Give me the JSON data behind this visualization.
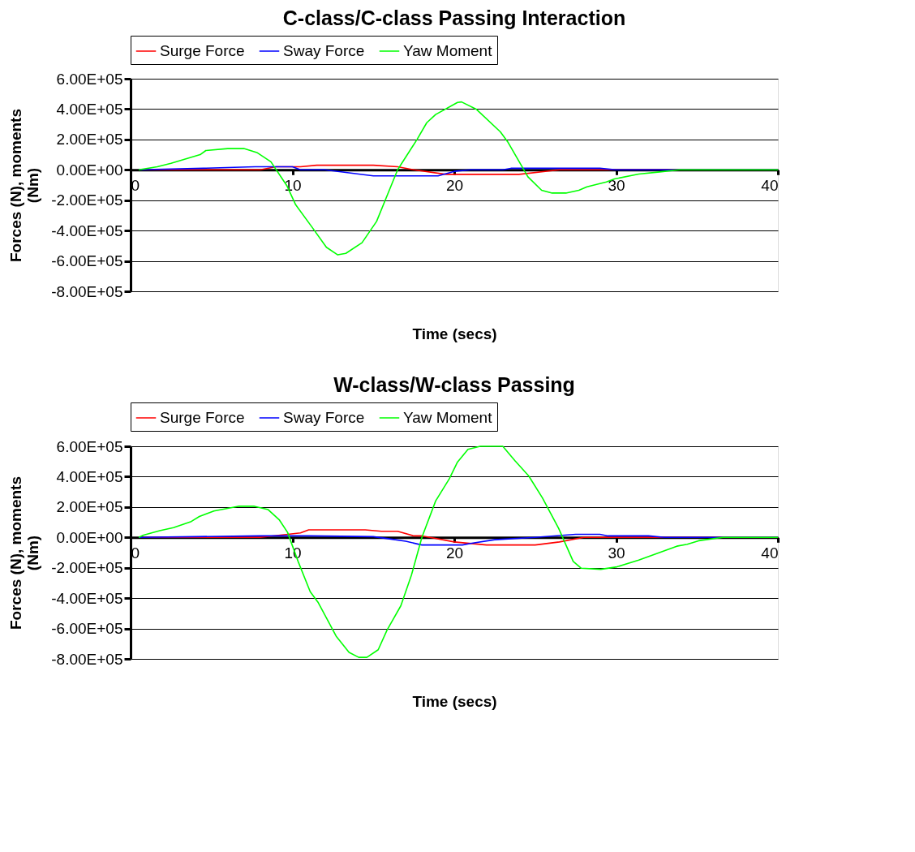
{
  "chart_data": [
    {
      "type": "line",
      "title": "C-class/C-class Passing Interaction",
      "xlabel": "Time (secs)",
      "ylabel": "Forces (N), moments\n(Nm)",
      "legend": "top",
      "grid": "y",
      "marker": "none",
      "line_style": "solid",
      "xlim": [
        0,
        40
      ],
      "xticks": [
        0,
        10,
        20,
        30,
        40
      ],
      "ylim": [
        -800000,
        600000
      ],
      "yticks": [
        {
          "value": -800000,
          "label": "-8.00E+05"
        },
        {
          "value": -600000,
          "label": "-6.00E+05"
        },
        {
          "value": -400000,
          "label": "-4.00E+05"
        },
        {
          "value": -200000,
          "label": "-2.00E+05"
        },
        {
          "value": 0,
          "label": "0.00E+00"
        },
        {
          "value": 200000,
          "label": "2.00E+05"
        },
        {
          "value": 400000,
          "label": "4.00E+05"
        },
        {
          "value": 600000,
          "label": "6.00E+05"
        }
      ],
      "series": [
        {
          "name": "Surge Force",
          "color": "#ff0000",
          "x": [
            0.5,
            8,
            9,
            10.5,
            11.5,
            15,
            16.5,
            17.5,
            19.5,
            24,
            26.5,
            40
          ],
          "values": [
            0,
            0,
            20000,
            20000,
            30000,
            30000,
            20000,
            0,
            -30000,
            -30000,
            0,
            0
          ]
        },
        {
          "name": "Sway Force",
          "color": "#0000ff",
          "x": [
            0.5,
            4.5,
            7.7,
            10,
            10.5,
            12,
            15,
            19,
            20,
            21,
            23,
            23.5,
            29,
            30,
            40
          ],
          "values": [
            0,
            10000,
            20000,
            20000,
            0,
            0,
            -40000,
            -40000,
            -10000,
            0,
            0,
            10000,
            10000,
            0,
            0
          ]
        },
        {
          "name": "Yaw Moment",
          "color": "#00ff00",
          "x": [
            0.5,
            1.65,
            2.5,
            4.3,
            4.65,
            6.0,
            7.0,
            7.8,
            8.67,
            9.67,
            10.2,
            11.2,
            12.1,
            12.8,
            13.3,
            14.3,
            15.2,
            16.5,
            17.7,
            18.3,
            18.85,
            20.2,
            20.45,
            21.35,
            22.85,
            23.3,
            24.55,
            25.4,
            26.05,
            26.9,
            27.7,
            28.2,
            29.4,
            29.9,
            31.4,
            32.7,
            33.9,
            40
          ],
          "values": [
            0,
            20000,
            43000,
            100000,
            127000,
            140000,
            140000,
            114000,
            53000,
            -107000,
            -230000,
            -376000,
            -510000,
            -560000,
            -550000,
            -480000,
            -340000,
            0,
            200000,
            310000,
            364000,
            444000,
            447000,
            400000,
            250000,
            185000,
            -46000,
            -135000,
            -153000,
            -153000,
            -135000,
            -112000,
            -80000,
            -60000,
            -28000,
            -14000,
            0,
            0
          ]
        }
      ]
    },
    {
      "type": "line",
      "title": "W-class/W-class Passing",
      "xlabel": "Time (secs)",
      "ylabel": "Forces (N), moments\n(Nm)",
      "legend": "top",
      "grid": "y",
      "marker": "none",
      "line_style": "solid",
      "xlim": [
        0,
        40
      ],
      "xticks": [
        0,
        10,
        20,
        30,
        40
      ],
      "ylim": [
        -800000,
        600000
      ],
      "yticks": [
        {
          "value": -800000,
          "label": "-8.00E+05"
        },
        {
          "value": -600000,
          "label": "-6.00E+05"
        },
        {
          "value": -400000,
          "label": "-4.00E+05"
        },
        {
          "value": -200000,
          "label": "-2.00E+05"
        },
        {
          "value": 0,
          "label": "0.00E+00"
        },
        {
          "value": 200000,
          "label": "2.00E+05"
        },
        {
          "value": 400000,
          "label": "4.00E+05"
        },
        {
          "value": 600000,
          "label": "6.00E+05"
        }
      ],
      "series": [
        {
          "name": "Surge Force",
          "color": "#ff0000",
          "x": [
            0.5,
            8,
            10.5,
            11,
            14.5,
            15.5,
            16.5,
            17.5,
            18,
            18.5,
            20,
            22,
            25,
            26.5,
            28,
            40
          ],
          "values": [
            0,
            0,
            30000,
            50000,
            50000,
            40000,
            40000,
            10000,
            10000,
            0,
            -30000,
            -50000,
            -50000,
            -30000,
            0,
            0
          ]
        },
        {
          "name": "Sway Force",
          "color": "#0000ff",
          "x": [
            0.5,
            4,
            8,
            11,
            15,
            16,
            17,
            18,
            20.5,
            21,
            22.5,
            25,
            27.5,
            29,
            29.5,
            32,
            33,
            40
          ],
          "values": [
            0,
            5000,
            10000,
            10000,
            5000,
            -10000,
            -25000,
            -50000,
            -50000,
            -40000,
            -15000,
            0,
            20000,
            20000,
            10000,
            10000,
            0,
            0
          ]
        },
        {
          "name": "Yaw Moment",
          "color": "#00ff00",
          "x": [
            0.5,
            0.8,
            1.8,
            2.65,
            3.75,
            4.25,
            5.15,
            6.65,
            7.65,
            8.5,
            9.2,
            9.7,
            10.35,
            11.1,
            11.6,
            12.7,
            13.5,
            14.1,
            14.6,
            15.3,
            15.85,
            16.7,
            17.35,
            18.0,
            18.85,
            19.7,
            20.2,
            20.85,
            21.6,
            23.0,
            23.75,
            24.6,
            25.45,
            26.45,
            27.35,
            27.85,
            29.05,
            30.05,
            31.4,
            33.75,
            34.4,
            35.1,
            36.6,
            40
          ],
          "values": [
            0,
            15000,
            44000,
            64000,
            105000,
            138000,
            174000,
            205000,
            205000,
            183000,
            114000,
            33000,
            -158000,
            -358000,
            -430000,
            -650000,
            -757000,
            -790000,
            -790000,
            -740000,
            -610000,
            -450000,
            -250000,
            0,
            240000,
            387000,
            496000,
            580000,
            600000,
            600000,
            505000,
            405000,
            260000,
            60000,
            -158000,
            -203000,
            -210000,
            -194000,
            -149000,
            -58000,
            -45000,
            -22000,
            0,
            0
          ]
        }
      ]
    }
  ]
}
